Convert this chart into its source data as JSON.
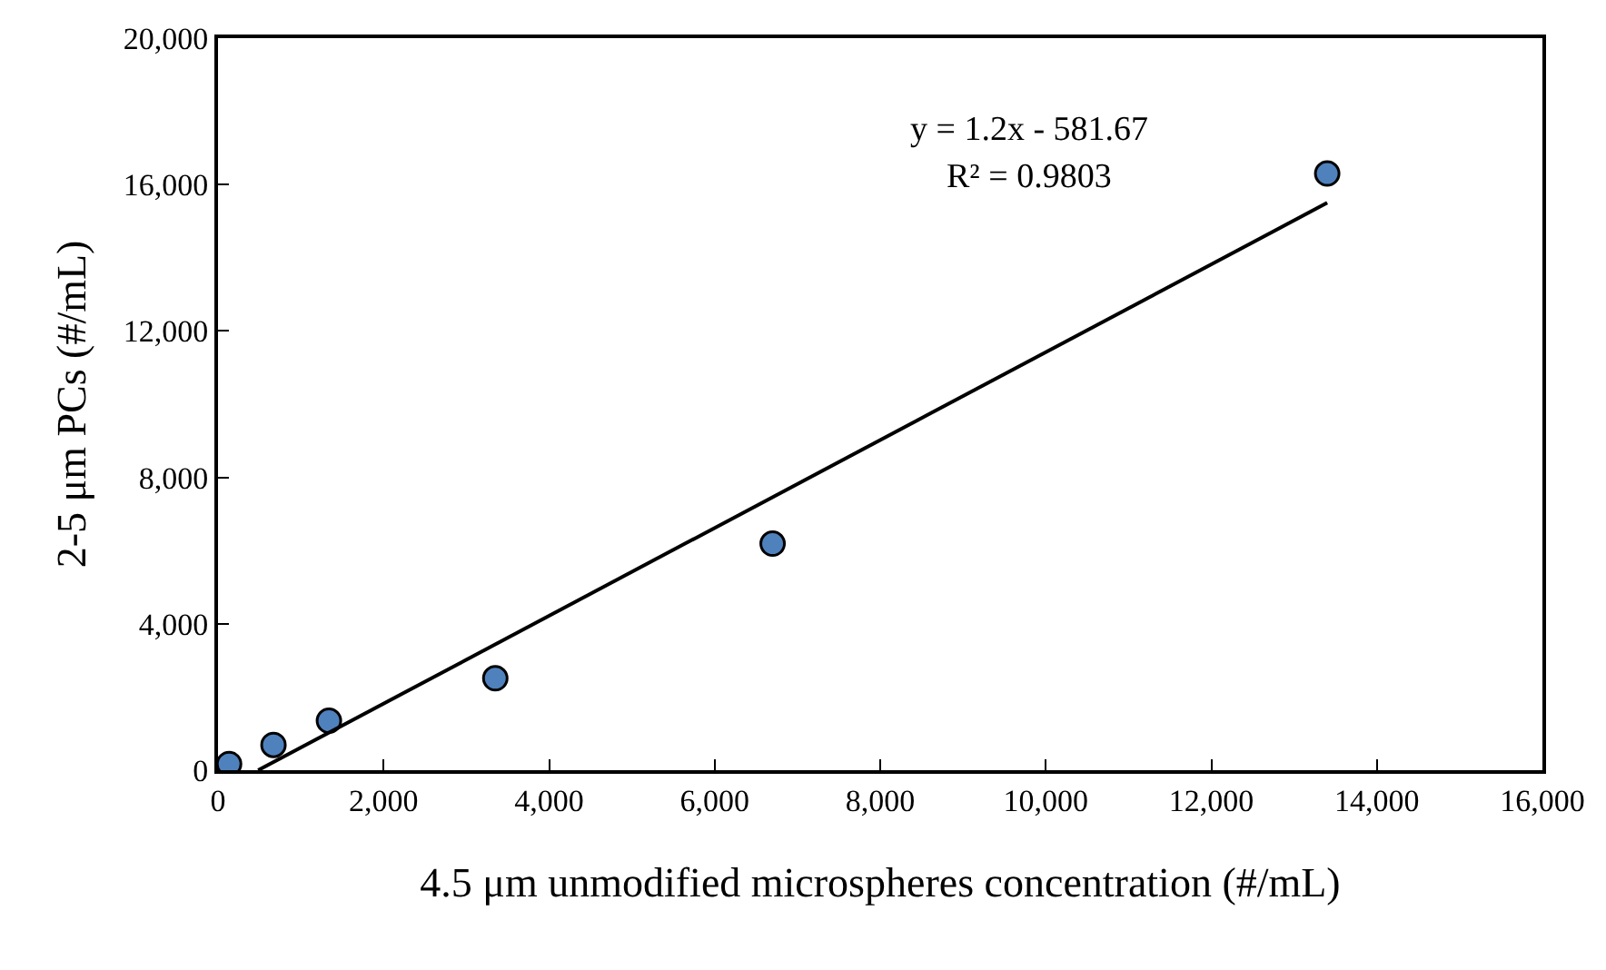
{
  "chart_data": {
    "type": "scatter",
    "xlabel": "4.5 μm unmodified microspheres concentration (#/mL)",
    "ylabel": "2-5 μm PCs (#/mL)",
    "annotations": [
      "y = 1.2x - 581.67",
      "R² = 0.9803"
    ],
    "x": [
      134,
      670,
      1340,
      3350,
      6700,
      13400
    ],
    "series": [
      {
        "color": "#4f81bd",
        "values": [
          170,
          690,
          1350,
          2510,
          6190,
          16300
        ],
        "marker": "circle"
      },
      {
        "type": "line",
        "color": "#000000",
        "x": [
          485,
          13400
        ],
        "values": [
          0,
          15500
        ],
        "marker": "none",
        "line_style": "solid"
      }
    ],
    "xlim": [
      0,
      16000
    ],
    "xticks": [
      {
        "value": 0,
        "label": "0"
      },
      {
        "value": 2000,
        "label": "2,000"
      },
      {
        "value": 4000,
        "label": "4,000"
      },
      {
        "value": 6000,
        "label": "6,000"
      },
      {
        "value": 8000,
        "label": "8,000"
      },
      {
        "value": 10000,
        "label": "10,000"
      },
      {
        "value": 12000,
        "label": "12,000"
      },
      {
        "value": 14000,
        "label": "14,000"
      },
      {
        "value": 16000,
        "label": "16,000"
      }
    ],
    "ylim": [
      0,
      20000
    ],
    "yticks": [
      {
        "value": 0,
        "label": "0"
      },
      {
        "value": 4000,
        "label": "4,000"
      },
      {
        "value": 8000,
        "label": "8,000"
      },
      {
        "value": 12000,
        "label": "12,000"
      },
      {
        "value": 16000,
        "label": "16,000"
      },
      {
        "value": 20000,
        "label": "20,000"
      }
    ],
    "legend": false
  }
}
